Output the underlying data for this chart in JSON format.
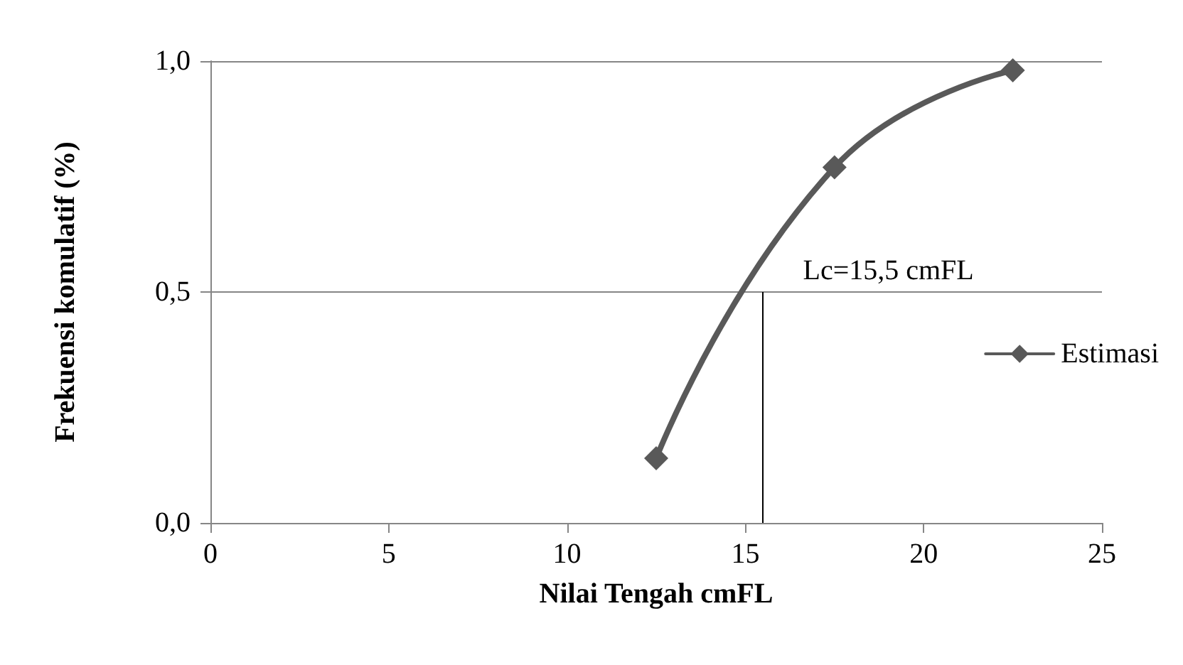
{
  "chart_data": {
    "type": "line",
    "xlabel": "Nilai Tengah cmFL",
    "ylabel": "Frekuensi komulatif (%)",
    "x": [
      12.5,
      17.5,
      22.5
    ],
    "series": [
      {
        "name": "Estimasi",
        "color": "#595959",
        "values": [
          0.14,
          0.77,
          0.98
        ]
      }
    ],
    "xlim": [
      0,
      25
    ],
    "xticks": [
      0,
      5,
      10,
      15,
      20,
      25
    ],
    "ylim": [
      0,
      1
    ],
    "yticks": [
      {
        "value": 0,
        "label": "0,0"
      },
      {
        "value": 0.5,
        "label": "0,5"
      },
      {
        "value": 1,
        "label": "1,0"
      }
    ],
    "ref_lines": [
      {
        "axis": "x",
        "value": 15.5,
        "label": "Lc=15,5 cmFL",
        "color": "#000000"
      }
    ],
    "grid": "y",
    "legend": "right",
    "marker": "diamond",
    "line_style": "solid"
  }
}
